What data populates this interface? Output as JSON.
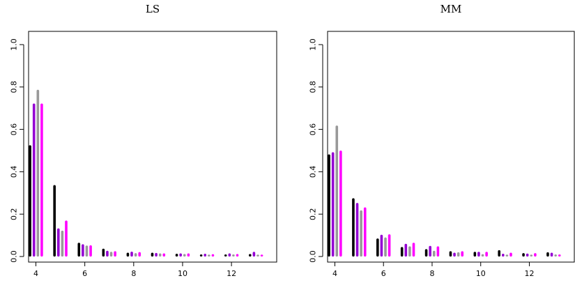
{
  "chart_data": [
    {
      "type": "bar",
      "title": "LS",
      "xlabel": "",
      "ylabel": "",
      "ylim": [
        0,
        1.0
      ],
      "yticks": [
        "0.0",
        "0.2",
        "0.4",
        "0.6",
        "0.8",
        "1.0"
      ],
      "x_tick_labels": [
        "4",
        "6",
        "8",
        "10",
        "12"
      ],
      "categories": [
        4,
        5,
        6,
        7,
        8,
        9,
        10,
        11,
        12,
        13
      ],
      "grid": false,
      "series": [
        {
          "color": "#000000",
          "values": [
            0.525,
            0.337,
            0.065,
            0.037,
            0.018,
            0.018,
            0.013,
            0.01,
            0.01,
            0.012
          ]
        },
        {
          "color": "#9400d3",
          "values": [
            0.722,
            0.133,
            0.058,
            0.027,
            0.023,
            0.017,
            0.015,
            0.013,
            0.015,
            0.022
          ]
        },
        {
          "color": "#999999",
          "values": [
            0.787,
            0.122,
            0.052,
            0.022,
            0.016,
            0.015,
            0.012,
            0.009,
            0.01,
            0.009
          ]
        },
        {
          "color": "#ff00ff",
          "values": [
            0.722,
            0.17,
            0.053,
            0.025,
            0.021,
            0.015,
            0.015,
            0.011,
            0.012,
            0.009
          ]
        }
      ]
    },
    {
      "type": "bar",
      "title": "MM",
      "xlabel": "",
      "ylabel": "",
      "ylim": [
        0,
        1.0
      ],
      "yticks": [
        "0.0",
        "0.2",
        "0.4",
        "0.6",
        "0.8",
        "1.0"
      ],
      "x_tick_labels": [
        "4",
        "6",
        "8",
        "10",
        "12"
      ],
      "categories": [
        4,
        5,
        6,
        7,
        8,
        9,
        10,
        11,
        12,
        13
      ],
      "grid": false,
      "series": [
        {
          "color": "#000000",
          "values": [
            0.482,
            0.275,
            0.085,
            0.045,
            0.035,
            0.025,
            0.022,
            0.03,
            0.016,
            0.02
          ]
        },
        {
          "color": "#9400d3",
          "values": [
            0.492,
            0.253,
            0.103,
            0.06,
            0.05,
            0.018,
            0.022,
            0.013,
            0.014,
            0.018
          ]
        },
        {
          "color": "#999999",
          "values": [
            0.618,
            0.218,
            0.09,
            0.048,
            0.027,
            0.02,
            0.011,
            0.009,
            0.009,
            0.01
          ]
        },
        {
          "color": "#ff00ff",
          "values": [
            0.5,
            0.232,
            0.105,
            0.065,
            0.048,
            0.025,
            0.022,
            0.018,
            0.016,
            0.01
          ]
        }
      ]
    }
  ]
}
